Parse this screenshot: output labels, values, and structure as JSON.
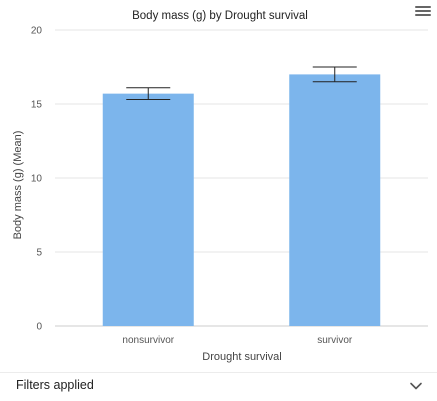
{
  "chart_data": {
    "type": "bar",
    "title": "Body mass (g) by Drought survival",
    "xlabel": "Drought survival",
    "ylabel": "Body mass (g) (Mean)",
    "categories": [
      "nonsurvivor",
      "survivor"
    ],
    "values": [
      15.7,
      17.0
    ],
    "error_low": [
      15.3,
      16.5
    ],
    "error_high": [
      16.1,
      17.5
    ],
    "ylim": [
      0,
      20
    ],
    "yticks": [
      0,
      5,
      10,
      15,
      20
    ],
    "grid": true,
    "bar_color": "#7cb5ec"
  },
  "filters": {
    "label": "Filters applied",
    "chevron": "chevron-down-icon"
  },
  "menu": {
    "icon": "hamburger-menu-icon"
  }
}
